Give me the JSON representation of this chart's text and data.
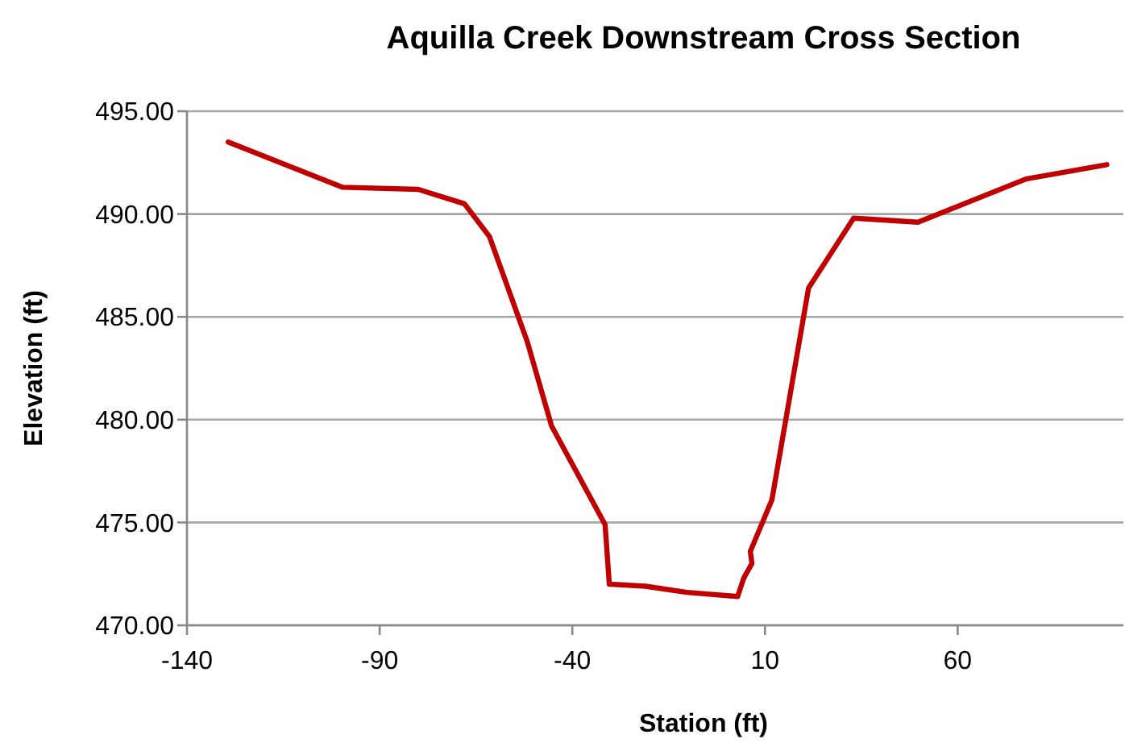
{
  "chart_data": {
    "type": "line",
    "title": "Aquilla Creek Downstream Cross Section",
    "xlabel": "Station (ft)",
    "ylabel": "Elevation (ft)",
    "xlim": [
      -140,
      103
    ],
    "xticks": [
      -140,
      -90,
      -40,
      10,
      60
    ],
    "ylim": [
      470,
      495
    ],
    "yticks": [
      {
        "value": 470,
        "label": "470.00"
      },
      {
        "value": 475,
        "label": "475.00"
      },
      {
        "value": 480,
        "label": "480.00"
      },
      {
        "value": 485,
        "label": "485.00"
      },
      {
        "value": 490,
        "label": "490.00"
      },
      {
        "value": 495,
        "label": "495.00"
      }
    ],
    "grid": "y",
    "marker": "none",
    "line_style": "solid",
    "series": [
      {
        "color": "#c00000",
        "x": [
          -129.3,
          -99.6,
          -80.0,
          -68.0,
          -61.5,
          -51.7,
          -45.4,
          -31.5,
          -30.4,
          -21.0,
          -10.3,
          2.9,
          4.5,
          6.6,
          6.2,
          11.8,
          21.3,
          33.0,
          49.7,
          77.7,
          98.7
        ],
        "values": [
          493.5,
          491.3,
          491.2,
          490.5,
          488.9,
          483.8,
          479.7,
          474.9,
          472.0,
          471.9,
          471.6,
          471.4,
          472.3,
          473.0,
          473.6,
          476.1,
          486.4,
          489.8,
          489.6,
          491.7,
          492.4
        ]
      }
    ]
  }
}
